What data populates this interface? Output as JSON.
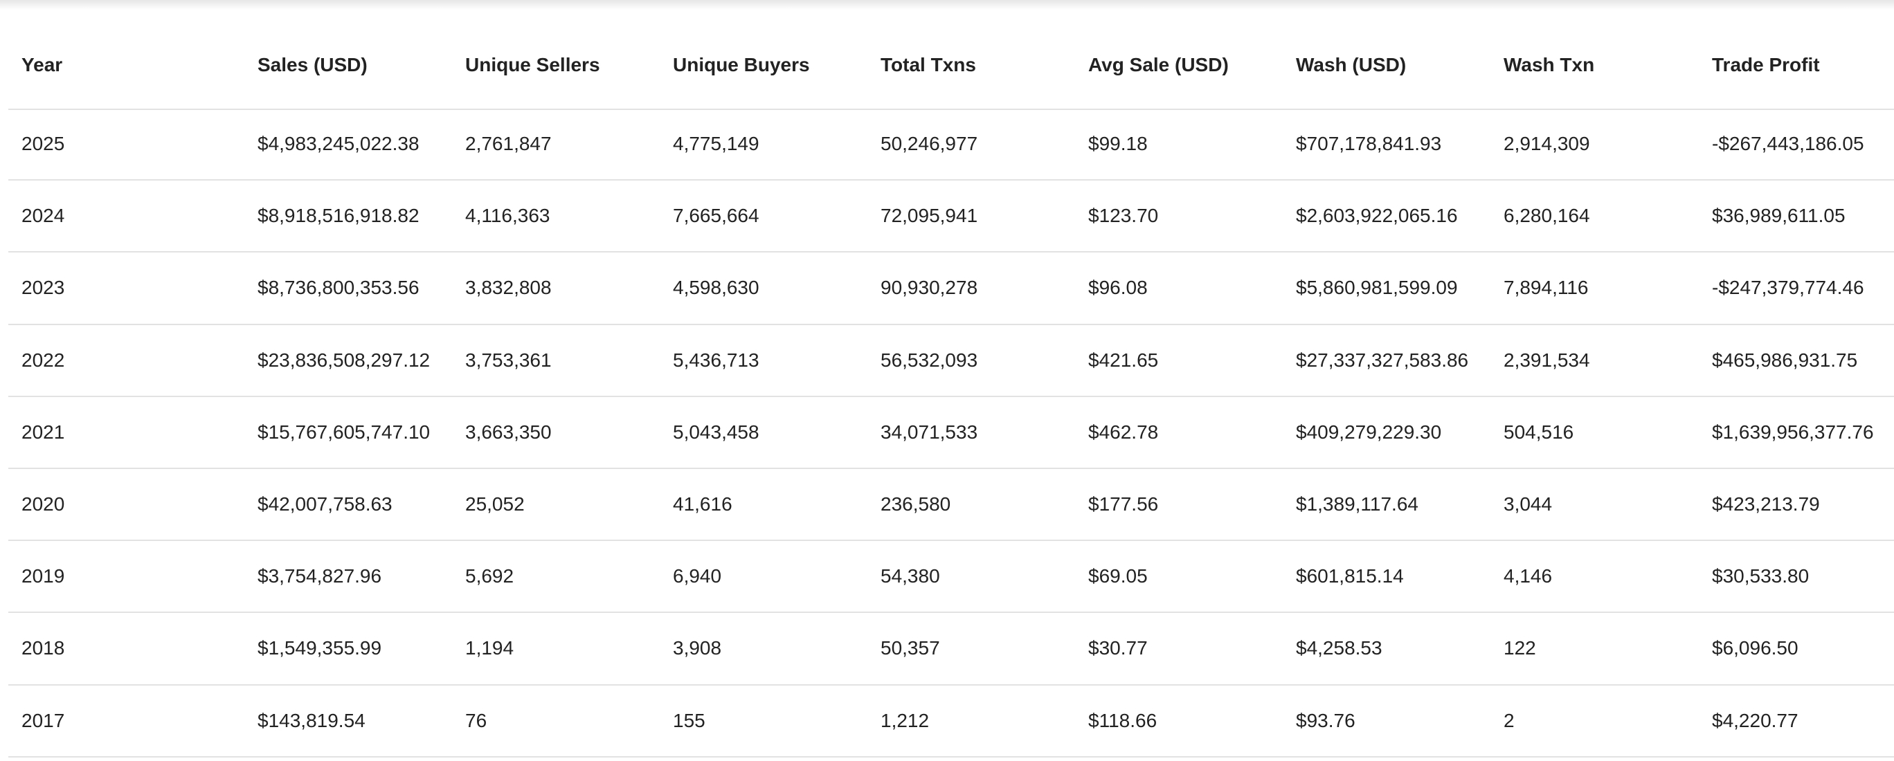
{
  "table": {
    "headers": [
      "Year",
      "Sales (USD)",
      "Unique Sellers",
      "Unique Buyers",
      "Total Txns",
      "Avg Sale (USD)",
      "Wash (USD)",
      "Wash Txn",
      "Trade Profit"
    ],
    "rows": [
      [
        "2025",
        "$4,983,245,022.38",
        "2,761,847",
        "4,775,149",
        "50,246,977",
        "$99.18",
        "$707,178,841.93",
        "2,914,309",
        "-$267,443,186.05"
      ],
      [
        "2024",
        "$8,918,516,918.82",
        "4,116,363",
        "7,665,664",
        "72,095,941",
        "$123.70",
        "$2,603,922,065.16",
        "6,280,164",
        "$36,989,611.05"
      ],
      [
        "2023",
        "$8,736,800,353.56",
        "3,832,808",
        "4,598,630",
        "90,930,278",
        "$96.08",
        "$5,860,981,599.09",
        "7,894,116",
        "-$247,379,774.46"
      ],
      [
        "2022",
        "$23,836,508,297.12",
        "3,753,361",
        "5,436,713",
        "56,532,093",
        "$421.65",
        "$27,337,327,583.86",
        "2,391,534",
        "$465,986,931.75"
      ],
      [
        "2021",
        "$15,767,605,747.10",
        "3,663,350",
        "5,043,458",
        "34,071,533",
        "$462.78",
        "$409,279,229.30",
        "504,516",
        "$1,639,956,377.76"
      ],
      [
        "2020",
        "$42,007,758.63",
        "25,052",
        "41,616",
        "236,580",
        "$177.56",
        "$1,389,117.64",
        "3,044",
        "$423,213.79"
      ],
      [
        "2019",
        "$3,754,827.96",
        "5,692",
        "6,940",
        "54,380",
        "$69.05",
        "$601,815.14",
        "4,146",
        "$30,533.80"
      ],
      [
        "2018",
        "$1,549,355.99",
        "1,194",
        "3,908",
        "50,357",
        "$30.77",
        "$4,258.53",
        "122",
        "$6,096.50"
      ],
      [
        "2017",
        "$143,819.54",
        "76",
        "155",
        "1,212",
        "$118.66",
        "$93.76",
        "2",
        "$4,220.77"
      ]
    ]
  }
}
